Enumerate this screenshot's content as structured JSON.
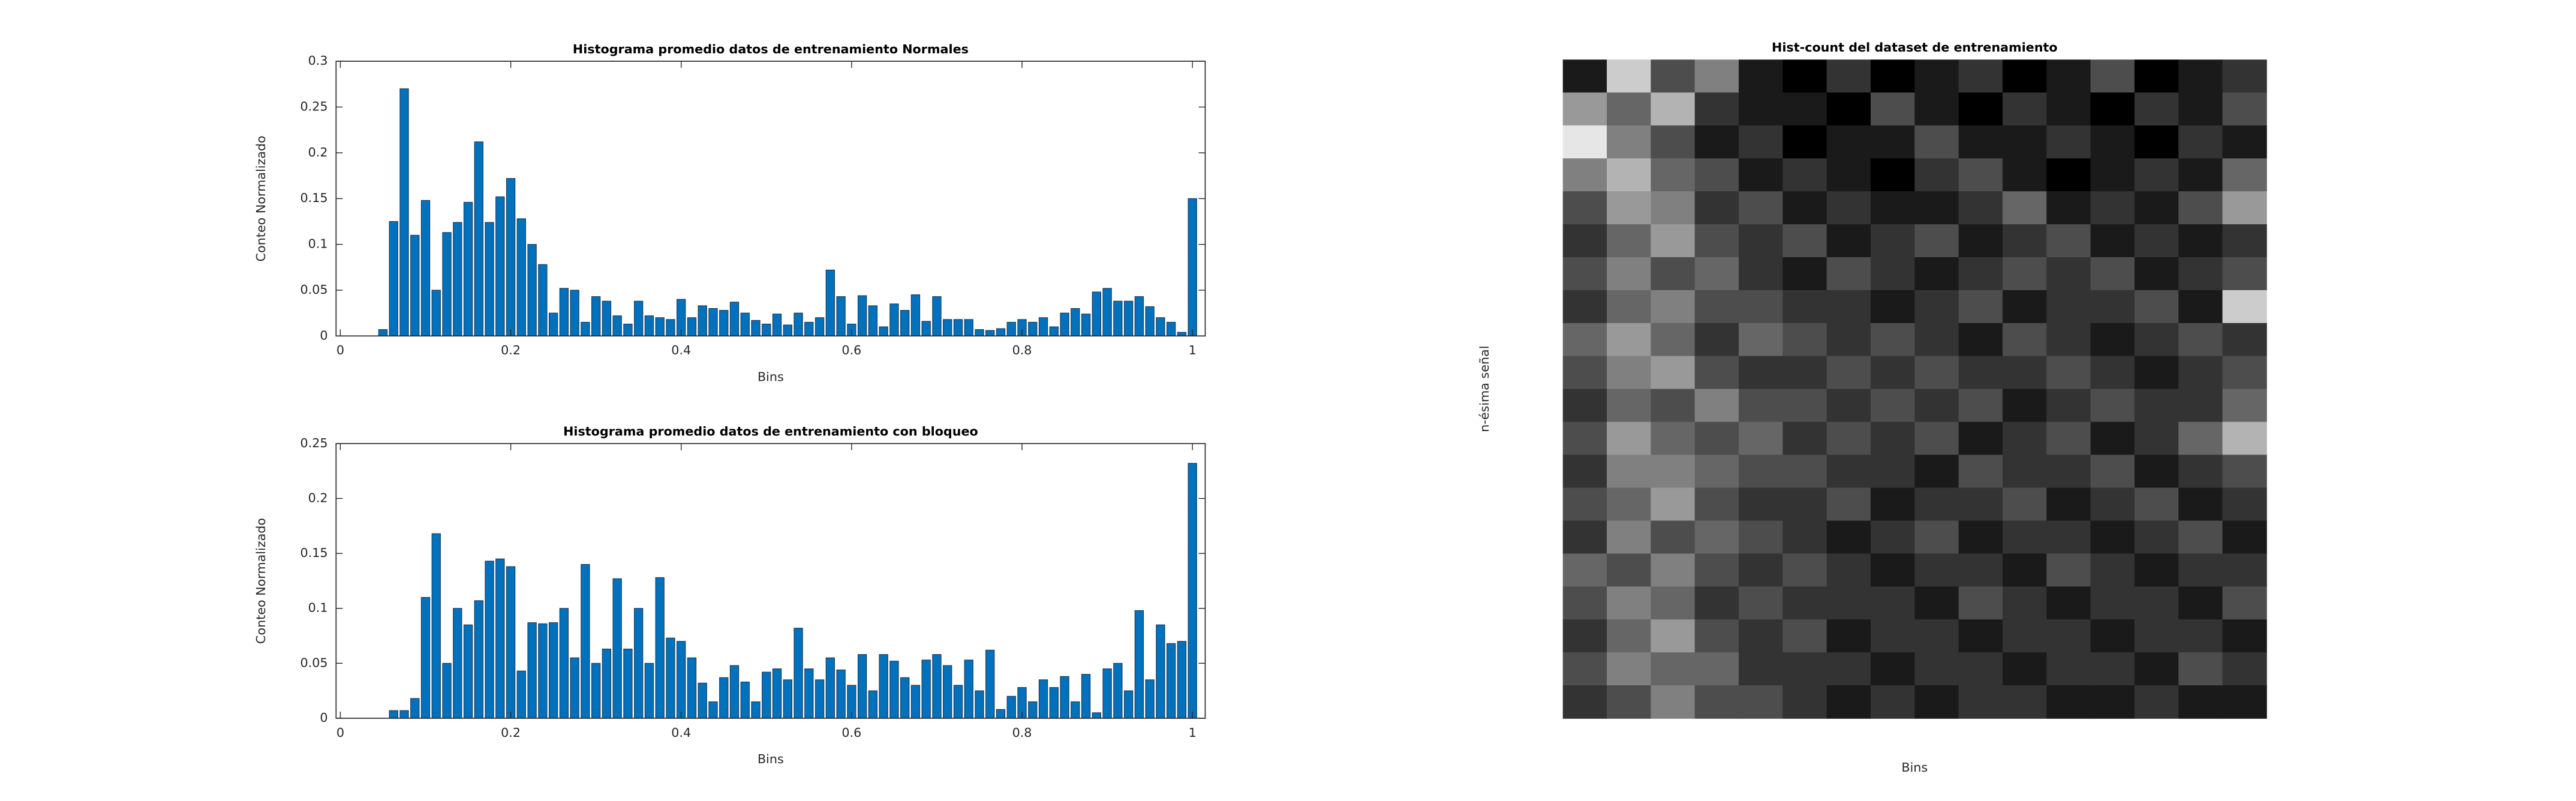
{
  "chart_data": [
    {
      "type": "bar",
      "title": "Histograma promedio datos de entrenamiento Normales",
      "xlabel": "Bins",
      "ylabel": "Conteo Normalizado",
      "color": "#0072bd",
      "x": [
        0,
        0.0125,
        0.025,
        0.0375,
        0.05,
        0.0625,
        0.075,
        0.0875,
        0.1,
        0.1125,
        0.125,
        0.1375,
        0.15,
        0.1625,
        0.175,
        0.1875,
        0.2,
        0.2125,
        0.225,
        0.2375,
        0.25,
        0.2625,
        0.275,
        0.2875,
        0.3,
        0.3125,
        0.325,
        0.3375,
        0.35,
        0.3625,
        0.375,
        0.3875,
        0.4,
        0.4125,
        0.425,
        0.4375,
        0.45,
        0.4625,
        0.475,
        0.4875,
        0.5,
        0.5125,
        0.525,
        0.5375,
        0.55,
        0.5625,
        0.575,
        0.5875,
        0.6,
        0.6125,
        0.625,
        0.6375,
        0.65,
        0.6625,
        0.675,
        0.6875,
        0.7,
        0.7125,
        0.725,
        0.7375,
        0.75,
        0.7625,
        0.775,
        0.7875,
        0.8,
        0.8125,
        0.825,
        0.8375,
        0.85,
        0.8625,
        0.875,
        0.8875,
        0.9,
        0.9125,
        0.925,
        0.9375,
        0.95,
        0.9625,
        0.975,
        0.9875,
        1
      ],
      "values": [
        0,
        0,
        0,
        0,
        0.007,
        0.125,
        0.27,
        0.11,
        0.148,
        0.05,
        0.113,
        0.124,
        0.146,
        0.212,
        0.124,
        0.152,
        0.172,
        0.128,
        0.1,
        0.078,
        0.025,
        0.052,
        0.05,
        0.015,
        0.043,
        0.038,
        0.022,
        0.013,
        0.038,
        0.022,
        0.02,
        0.018,
        0.04,
        0.02,
        0.033,
        0.03,
        0.028,
        0.037,
        0.025,
        0.017,
        0.013,
        0.024,
        0.012,
        0.025,
        0.015,
        0.02,
        0.072,
        0.043,
        0.013,
        0.044,
        0.033,
        0.01,
        0.035,
        0.028,
        0.045,
        0.016,
        0.043,
        0.018,
        0.018,
        0.018,
        0.007,
        0.006,
        0.008,
        0.015,
        0.018,
        0.015,
        0.02,
        0.01,
        0.025,
        0.03,
        0.024,
        0.048,
        0.052,
        0.038,
        0.038,
        0.043,
        0.032,
        0.02,
        0.015,
        0.004,
        0.15
      ],
      "bar_width": 0.01,
      "xlim": [
        -0.005,
        1.015
      ],
      "xticks": [
        0,
        0.2,
        0.4,
        0.6,
        0.8,
        1
      ],
      "ylim": [
        0,
        0.3
      ],
      "yticks": [
        0,
        0.05,
        0.1,
        0.15,
        0.2,
        0.25,
        0.3
      ]
    },
    {
      "type": "bar",
      "title": "Histograma promedio datos de entrenamiento con bloqueo",
      "xlabel": "Bins",
      "ylabel": "Conteo Normalizado",
      "color": "#0072bd",
      "x": [
        0,
        0.0125,
        0.025,
        0.0375,
        0.05,
        0.0625,
        0.075,
        0.0875,
        0.1,
        0.1125,
        0.125,
        0.1375,
        0.15,
        0.1625,
        0.175,
        0.1875,
        0.2,
        0.2125,
        0.225,
        0.2375,
        0.25,
        0.2625,
        0.275,
        0.2875,
        0.3,
        0.3125,
        0.325,
        0.3375,
        0.35,
        0.3625,
        0.375,
        0.3875,
        0.4,
        0.4125,
        0.425,
        0.4375,
        0.45,
        0.4625,
        0.475,
        0.4875,
        0.5,
        0.5125,
        0.525,
        0.5375,
        0.55,
        0.5625,
        0.575,
        0.5875,
        0.6,
        0.6125,
        0.625,
        0.6375,
        0.65,
        0.6625,
        0.675,
        0.6875,
        0.7,
        0.7125,
        0.725,
        0.7375,
        0.75,
        0.7625,
        0.775,
        0.7875,
        0.8,
        0.8125,
        0.825,
        0.8375,
        0.85,
        0.8625,
        0.875,
        0.8875,
        0.9,
        0.9125,
        0.925,
        0.9375,
        0.95,
        0.9625,
        0.975,
        0.9875,
        1
      ],
      "values": [
        0,
        0,
        0,
        0,
        0,
        0.007,
        0.007,
        0.018,
        0.11,
        0.168,
        0.05,
        0.1,
        0.085,
        0.107,
        0.143,
        0.145,
        0.138,
        0.043,
        0.087,
        0.086,
        0.087,
        0.1,
        0.055,
        0.14,
        0.05,
        0.063,
        0.127,
        0.063,
        0.1,
        0.05,
        0.128,
        0.073,
        0.07,
        0.055,
        0.032,
        0.015,
        0.037,
        0.048,
        0.033,
        0.015,
        0.042,
        0.045,
        0.035,
        0.082,
        0.045,
        0.035,
        0.055,
        0.044,
        0.03,
        0.058,
        0.025,
        0.058,
        0.052,
        0.037,
        0.03,
        0.053,
        0.058,
        0.048,
        0.03,
        0.053,
        0.025,
        0.062,
        0.008,
        0.02,
        0.028,
        0.015,
        0.035,
        0.028,
        0.038,
        0.015,
        0.04,
        0.005,
        0.045,
        0.05,
        0.025,
        0.098,
        0.035,
        0.085,
        0.068,
        0.07,
        0.232
      ],
      "bar_width": 0.01,
      "xlim": [
        -0.005,
        1.015
      ],
      "xticks": [
        0,
        0.2,
        0.4,
        0.6,
        0.8,
        1
      ],
      "ylim": [
        0,
        0.25
      ],
      "yticks": [
        0,
        0.05,
        0.1,
        0.15,
        0.2,
        0.25
      ]
    },
    {
      "type": "heatmap",
      "title": "Hist-count del dataset de entrenamiento",
      "xlabel": "Bins",
      "ylabel": "n-ésima señal",
      "colormap": "gray",
      "clim": [
        0,
        1
      ],
      "values": [
        [
          0.1,
          0.8,
          0.3,
          0.5,
          0.1,
          0,
          0.2,
          0,
          0.1,
          0.2,
          0,
          0.1,
          0.3,
          0,
          0.1,
          0.2
        ],
        [
          0.6,
          0.4,
          0.7,
          0.2,
          0.1,
          0.1,
          0,
          0.3,
          0.1,
          0,
          0.2,
          0.1,
          0,
          0.2,
          0.1,
          0.3
        ],
        [
          0.9,
          0.5,
          0.3,
          0.1,
          0.2,
          0,
          0.1,
          0.1,
          0.3,
          0.1,
          0.1,
          0.2,
          0.1,
          0,
          0.2,
          0.1
        ],
        [
          0.5,
          0.7,
          0.4,
          0.3,
          0.1,
          0.2,
          0.1,
          0,
          0.2,
          0.3,
          0.1,
          0,
          0.1,
          0.2,
          0.1,
          0.4
        ],
        [
          0.3,
          0.6,
          0.5,
          0.2,
          0.3,
          0.1,
          0.2,
          0.1,
          0.1,
          0.2,
          0.4,
          0.1,
          0.2,
          0.1,
          0.3,
          0.6
        ],
        [
          0.2,
          0.4,
          0.6,
          0.3,
          0.2,
          0.3,
          0.1,
          0.2,
          0.3,
          0.1,
          0.2,
          0.3,
          0.1,
          0.2,
          0.1,
          0.2
        ],
        [
          0.3,
          0.5,
          0.3,
          0.4,
          0.2,
          0.1,
          0.3,
          0.2,
          0.1,
          0.2,
          0.3,
          0.2,
          0.3,
          0.1,
          0.2,
          0.3
        ],
        [
          0.2,
          0.4,
          0.5,
          0.3,
          0.3,
          0.2,
          0.2,
          0.1,
          0.2,
          0.3,
          0.1,
          0.2,
          0.2,
          0.3,
          0.1,
          0.8
        ],
        [
          0.4,
          0.6,
          0.4,
          0.2,
          0.4,
          0.3,
          0.2,
          0.3,
          0.2,
          0.1,
          0.3,
          0.2,
          0.1,
          0.2,
          0.3,
          0.2
        ],
        [
          0.3,
          0.5,
          0.6,
          0.3,
          0.2,
          0.2,
          0.3,
          0.2,
          0.3,
          0.2,
          0.2,
          0.3,
          0.2,
          0.1,
          0.2,
          0.3
        ],
        [
          0.2,
          0.4,
          0.3,
          0.5,
          0.3,
          0.3,
          0.2,
          0.3,
          0.2,
          0.3,
          0.1,
          0.2,
          0.3,
          0.2,
          0.2,
          0.4
        ],
        [
          0.3,
          0.6,
          0.4,
          0.3,
          0.4,
          0.2,
          0.3,
          0.2,
          0.3,
          0.1,
          0.2,
          0.3,
          0.1,
          0.2,
          0.4,
          0.7
        ],
        [
          0.2,
          0.5,
          0.5,
          0.4,
          0.3,
          0.3,
          0.2,
          0.2,
          0.1,
          0.3,
          0.2,
          0.2,
          0.3,
          0.1,
          0.2,
          0.3
        ],
        [
          0.3,
          0.4,
          0.6,
          0.3,
          0.2,
          0.2,
          0.3,
          0.1,
          0.2,
          0.2,
          0.3,
          0.1,
          0.2,
          0.3,
          0.1,
          0.2
        ],
        [
          0.2,
          0.5,
          0.3,
          0.4,
          0.3,
          0.2,
          0.1,
          0.2,
          0.3,
          0.1,
          0.2,
          0.2,
          0.1,
          0.2,
          0.3,
          0.1
        ],
        [
          0.4,
          0.3,
          0.5,
          0.3,
          0.2,
          0.3,
          0.2,
          0.1,
          0.2,
          0.2,
          0.1,
          0.3,
          0.2,
          0.1,
          0.2,
          0.2
        ],
        [
          0.3,
          0.5,
          0.4,
          0.2,
          0.3,
          0.2,
          0.2,
          0.2,
          0.1,
          0.3,
          0.2,
          0.1,
          0.2,
          0.2,
          0.1,
          0.3
        ],
        [
          0.2,
          0.4,
          0.6,
          0.3,
          0.2,
          0.3,
          0.1,
          0.2,
          0.2,
          0.1,
          0.2,
          0.2,
          0.1,
          0.2,
          0.2,
          0.1
        ],
        [
          0.3,
          0.5,
          0.4,
          0.4,
          0.2,
          0.2,
          0.2,
          0.1,
          0.2,
          0.2,
          0.1,
          0.2,
          0.2,
          0.1,
          0.3,
          0.2
        ],
        [
          0.2,
          0.3,
          0.5,
          0.3,
          0.3,
          0.2,
          0.1,
          0.2,
          0.1,
          0.2,
          0.2,
          0.1,
          0.1,
          0.2,
          0.1,
          0.1
        ]
      ]
    }
  ]
}
